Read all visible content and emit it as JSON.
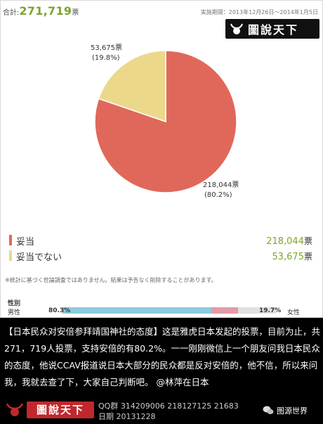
{
  "header": {
    "total_label": "合計:",
    "total_value": "271,719",
    "total_unit": "票",
    "period": "実施期間：2013年12月26日～2014年1月5日"
  },
  "logo_text": "圖說天下",
  "chart_data": {
    "type": "pie",
    "categories": [
      "妥当",
      "妥当でない"
    ],
    "values": [
      218044,
      53675
    ],
    "percent_labels": [
      "80.2%",
      "19.8%"
    ],
    "value_labels": [
      "218,044票",
      "53,675票"
    ],
    "colors": [
      "#e0685a",
      "#ecd88a"
    ],
    "start": "top, clockwise"
  },
  "legend": [
    {
      "label": "妥当",
      "value": "218,044",
      "unit": "票",
      "color": "#e0685a"
    },
    {
      "label": "妥当でない",
      "value": "53,675",
      "unit": "票",
      "color": "#ecd88a"
    }
  ],
  "note": "※統計に基づく世論調査ではありません。結果は予告なく削除することがあります。",
  "gender": {
    "title": "性別",
    "male_label": "男性",
    "male_pct": "80.3%",
    "male_value": 80.3,
    "female_pct": "19.7%",
    "female_label": "女性",
    "female_value": 19.7,
    "male_color": "#8ccbe0",
    "female_color": "#e49aa5"
  },
  "caption": "【日本民众对安倍参拜靖国神社的态度】这是雅虎日本发起的投票，目前为止，共271，719人投票，支持安倍的有80.2%。一一刚刚微信上一个朋友问我日本民众的态度，他说CCAV报道说日本大部分的民众都是反对安倍的，他不信，所以来问我，我就去查了下，大家自己判断吧。 @林萍在日本",
  "footer": {
    "logo": "圖說天下",
    "qq": "QQ群 314209006   218127125   21683",
    "date": "日期 20131228",
    "source": "图源世界"
  }
}
